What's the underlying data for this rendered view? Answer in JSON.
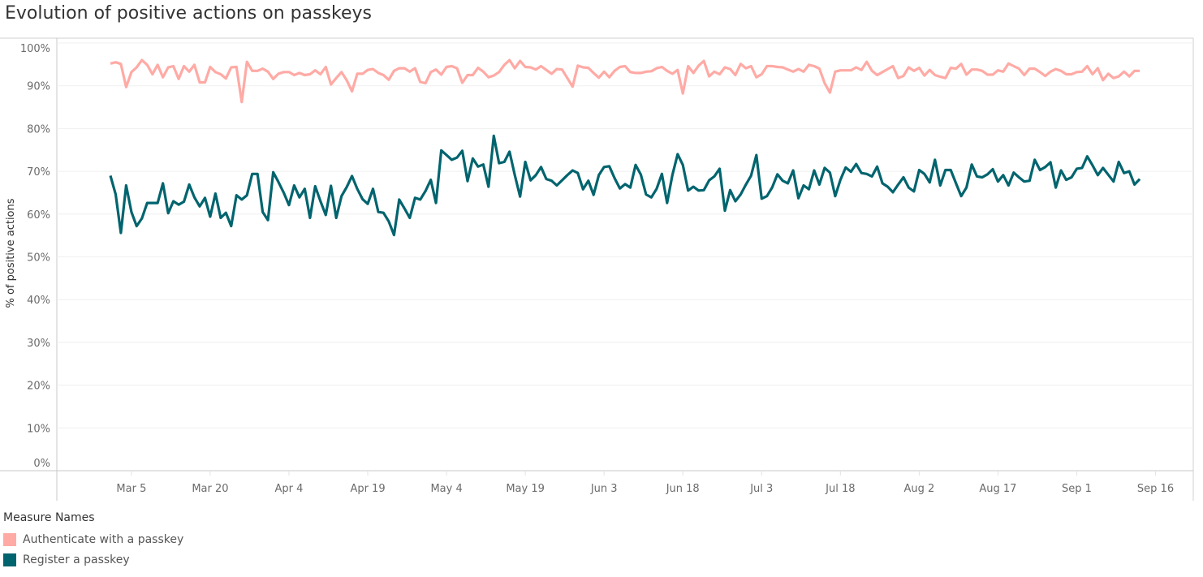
{
  "chart_data": {
    "type": "line",
    "title": "Evolution of positive actions on passkeys",
    "xlabel": "",
    "ylabel": "% of positive actions",
    "ylim": [
      0,
      100
    ],
    "y_ticks": [
      "0%",
      "10%",
      "20%",
      "30%",
      "40%",
      "50%",
      "60%",
      "70%",
      "80%",
      "90%",
      "100%"
    ],
    "x_ticks": [
      "Mar 5",
      "Mar 20",
      "Apr 4",
      "Apr 19",
      "May 4",
      "May 19",
      "Jun 3",
      "Jun 18",
      "Jul 3",
      "Jul 18",
      "Aug 2",
      "Aug 17",
      "Sep 1",
      "Sep 16"
    ],
    "x_first": "Mar 1",
    "x_last": "Sep 13",
    "x_interval": "daily",
    "grid": true,
    "legend": {
      "title": "Measure Names",
      "placement": "bottom-left"
    },
    "series": [
      {
        "name": "Authenticate with a passkey",
        "color": "#ffaaa5",
        "values": [
          95.2,
          95.5,
          95.1,
          89.7,
          93.2,
          94.3,
          96.0,
          94.9,
          92.7,
          94.9,
          92.0,
          94.3,
          94.6,
          91.6,
          94.6,
          93.3,
          94.9,
          90.8,
          90.8,
          94.4,
          93.2,
          92.7,
          91.7,
          94.3,
          94.4,
          86.2,
          95.6,
          93.5,
          93.5,
          94.0,
          93.3,
          91.6,
          92.8,
          93.2,
          93.2,
          92.5,
          93.0,
          92.5,
          92.7,
          93.6,
          92.7,
          94.4,
          90.3,
          91.8,
          93.2,
          91.3,
          88.7,
          92.8,
          92.8,
          93.7,
          93.9,
          93.0,
          92.5,
          91.4,
          93.5,
          94.1,
          94.1,
          93.3,
          94.1,
          90.9,
          90.6,
          93.2,
          93.8,
          92.6,
          94.4,
          94.6,
          94.1,
          90.7,
          92.5,
          92.5,
          94.2,
          93.3,
          92.0,
          92.4,
          93.2,
          94.9,
          96.0,
          94.1,
          95.8,
          94.4,
          94.3,
          93.8,
          94.6,
          93.7,
          92.8,
          93.9,
          93.8,
          91.8,
          89.8,
          94.7,
          94.3,
          94.2,
          93.0,
          91.9,
          93.3,
          92.0,
          93.5,
          94.4,
          94.6,
          93.2,
          93.0,
          93.0,
          93.3,
          93.4,
          94.1,
          94.4,
          93.5,
          92.8,
          93.7,
          88.2,
          94.6,
          93.0,
          94.7,
          95.8,
          92.2,
          93.3,
          92.7,
          94.3,
          93.9,
          92.5,
          95.1,
          94.1,
          94.6,
          92.0,
          92.7,
          94.6,
          94.6,
          94.4,
          94.3,
          93.8,
          93.3,
          93.9,
          93.3,
          94.9,
          94.6,
          94.0,
          90.6,
          88.4,
          93.3,
          93.6,
          93.6,
          93.6,
          94.3,
          93.7,
          95.6,
          93.5,
          92.5,
          93.2,
          93.9,
          94.6,
          91.8,
          92.3,
          94.3,
          93.5,
          94.2,
          92.4,
          93.7,
          92.5,
          92.1,
          91.8,
          94.2,
          94.0,
          95.1,
          92.6,
          93.8,
          93.8,
          93.5,
          92.6,
          92.6,
          93.6,
          93.3,
          95.2,
          94.6,
          94.0,
          92.5,
          94.0,
          94.0,
          93.2,
          92.3,
          93.3,
          93.9,
          93.5,
          92.7,
          92.7,
          93.2,
          93.3,
          94.6,
          92.7,
          94.1,
          91.3,
          92.8,
          91.8,
          92.2,
          93.3,
          92.2,
          93.5,
          93.5
        ]
      },
      {
        "name": "Register a passkey",
        "color": "#00646e",
        "values": [
          69.0,
          64.6,
          55.6,
          66.7,
          60.5,
          57.2,
          59.0,
          62.6,
          62.6,
          62.6,
          67.2,
          60.2,
          63.0,
          62.2,
          62.9,
          66.9,
          63.9,
          61.8,
          63.8,
          59.4,
          64.8,
          59.1,
          60.3,
          57.2,
          64.4,
          63.4,
          64.4,
          69.4,
          69.4,
          60.5,
          58.6,
          69.8,
          67.5,
          65.0,
          62.1,
          66.7,
          63.9,
          65.9,
          59.1,
          66.5,
          63.0,
          59.8,
          66.6,
          59.1,
          64.2,
          66.3,
          68.9,
          65.9,
          63.5,
          62.4,
          65.9,
          60.5,
          60.3,
          58.3,
          55.1,
          63.4,
          61.3,
          59.1,
          63.8,
          63.4,
          65.4,
          68.0,
          62.6,
          74.9,
          73.8,
          72.7,
          73.2,
          74.8,
          67.7,
          73.0,
          71.1,
          71.6,
          66.4,
          78.3,
          71.9,
          72.2,
          74.6,
          69.1,
          64.1,
          72.2,
          67.9,
          69.1,
          71.0,
          68.2,
          67.8,
          66.7,
          67.9,
          69.1,
          70.2,
          69.6,
          65.8,
          67.8,
          64.5,
          69.1,
          71.0,
          71.2,
          68.4,
          66.0,
          67.0,
          66.2,
          71.5,
          69.2,
          64.6,
          63.9,
          65.9,
          69.4,
          62.6,
          69.1,
          74.0,
          71.5,
          65.5,
          66.4,
          65.5,
          65.6,
          67.9,
          68.8,
          70.6,
          60.8,
          65.6,
          63.0,
          64.6,
          66.9,
          69.0,
          73.8,
          63.6,
          64.2,
          66.2,
          69.3,
          67.8,
          67.2,
          70.2,
          63.7,
          66.7,
          65.8,
          70.2,
          66.9,
          70.8,
          69.7,
          64.2,
          68.0,
          70.9,
          69.9,
          71.7,
          69.6,
          69.4,
          68.8,
          71.1,
          67.2,
          66.4,
          65.1,
          66.9,
          68.6,
          66.2,
          65.3,
          70.3,
          69.4,
          67.4,
          72.7,
          66.7,
          70.3,
          70.3,
          67.2,
          64.2,
          66.2,
          71.6,
          68.8,
          68.6,
          69.3,
          70.5,
          67.6,
          69.1,
          66.7,
          69.7,
          68.6,
          67.6,
          67.8,
          72.7,
          70.3,
          71.0,
          72.1,
          66.2,
          70.2,
          68.0,
          68.6,
          70.6,
          70.8,
          73.5,
          71.4,
          69.1,
          70.8,
          69.2,
          67.6,
          72.2,
          69.6,
          70.0,
          66.9,
          68.2
        ]
      }
    ]
  }
}
